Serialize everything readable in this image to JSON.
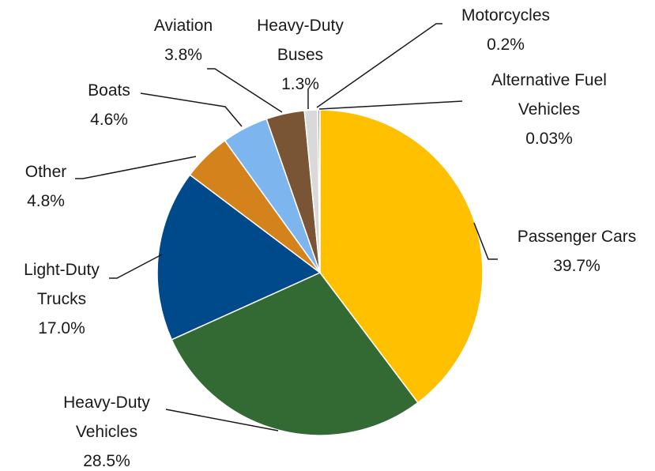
{
  "chart_data": {
    "type": "pie",
    "categories": [
      "Passenger Cars",
      "Heavy-Duty Vehicles",
      "Light-Duty Trucks",
      "Other",
      "Boats",
      "Aviation",
      "Heavy-Duty Buses",
      "Motorcycles",
      "Alternative Fuel Vehicles"
    ],
    "values": [
      39.7,
      28.5,
      17.0,
      4.8,
      4.6,
      3.8,
      1.3,
      0.2,
      0.03
    ],
    "value_labels": [
      "39.7%",
      "28.5%",
      "17.0%",
      "4.8%",
      "4.6%",
      "3.8%",
      "1.3%",
      "0.2%",
      "0.03%"
    ],
    "colors": [
      "#ffc000",
      "#336a33",
      "#00498a",
      "#d4821c",
      "#7db6ee",
      "#7a5535",
      "#d9d9d9",
      "#8c8c8c",
      "#1f5a2b"
    ]
  }
}
